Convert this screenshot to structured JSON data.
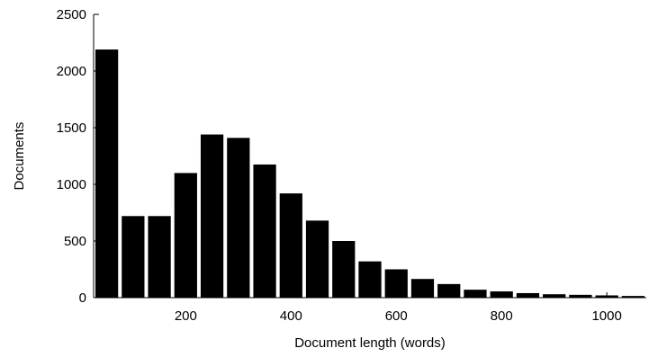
{
  "chart_data": {
    "type": "bar",
    "title": "",
    "xlabel": "Document length (words)",
    "ylabel": "Documents",
    "xlim": [
      25,
      1075
    ],
    "ylim": [
      0,
      2500
    ],
    "bin_width": 50,
    "x": [
      50,
      100,
      150,
      200,
      250,
      300,
      350,
      400,
      450,
      500,
      550,
      600,
      650,
      700,
      750,
      800,
      850,
      900,
      950,
      1000,
      1050
    ],
    "values": [
      2190,
      720,
      720,
      1100,
      1440,
      1410,
      1175,
      920,
      680,
      500,
      320,
      250,
      165,
      120,
      70,
      55,
      40,
      30,
      25,
      20,
      15
    ],
    "x_ticks": [
      200,
      400,
      600,
      800,
      1000
    ],
    "y_ticks": [
      0,
      500,
      1000,
      1500,
      2000,
      2500
    ],
    "grid": false,
    "bar_color": "#000000"
  }
}
